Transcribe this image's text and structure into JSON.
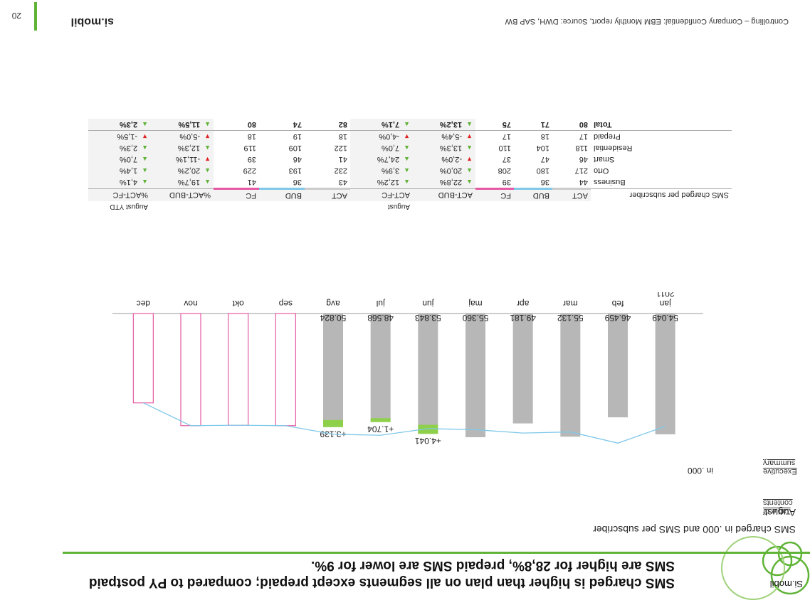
{
  "header": {
    "title": "SMS charged is higher than plan on all segments except prepaid; compared to PY postpaid SMS are higher for 28,8%, prepaid SMS are lower for 9%.",
    "brand": "Si.mobil",
    "subtitle": "SMS charged in .000 and SMS per subscriber",
    "month": "August"
  },
  "side_links": {
    "toc": "Table of contents",
    "exec": "Executive summary"
  },
  "chart_data": {
    "type": "bar",
    "unit_label": "in .000",
    "year_label": "2011",
    "categories": [
      "jan",
      "feb",
      "mar",
      "apr",
      "maj",
      "jun",
      "jul",
      "avg",
      "sep",
      "okt",
      "nov",
      "dec"
    ],
    "actual": [
      54049,
      46459,
      55132,
      49181,
      55360,
      53843,
      48568,
      50824,
      null,
      null,
      null,
      null
    ],
    "labels": [
      "54.049",
      "46.459",
      "55.132",
      "49.181",
      "55.360",
      "53.843",
      "48.568",
      "50.824",
      "",
      "",
      "",
      ""
    ],
    "variance_labels": [
      "",
      "",
      "",
      "",
      "",
      "+4.041",
      "+1.704",
      "+3.139",
      "",
      "",
      "",
      ""
    ],
    "variance": [
      0,
      0,
      0,
      0,
      0,
      4041,
      1704,
      3139,
      0,
      0,
      0,
      0
    ],
    "forecast_line": [
      50500,
      58000,
      53000,
      53500,
      52000,
      51500,
      54500,
      54000,
      50200,
      50000,
      50200,
      40000
    ],
    "colors": {
      "actual": "#b7b7b7",
      "variance": "#8ed04a",
      "forecast": "#e55aa3",
      "line": "#7fc8e8"
    }
  },
  "table": {
    "title": "SMS charged per subscriber",
    "group_month": "August",
    "group_ytd": "August YTD",
    "cols": [
      "ACT",
      "BUD",
      "FC",
      "ACT-BUD",
      "ACT-FC"
    ],
    "cols_ytd": [
      "ACT",
      "BUD",
      "FC",
      "%ACT-BUD",
      "%ACT-FC"
    ],
    "rows": [
      {
        "name": "Business",
        "v": [
          "44",
          "36",
          "39",
          "22,8%",
          "12,2%"
        ],
        "y": [
          "43",
          "36",
          "41",
          "19,7%",
          "4,1%"
        ],
        "a": [
          "up",
          "up"
        ],
        "ya": [
          "up",
          "up"
        ]
      },
      {
        "name": "Orto",
        "v": [
          "217",
          "180",
          "208",
          "20,0%",
          "3,9%"
        ],
        "y": [
          "232",
          "193",
          "229",
          "20,2%",
          "1,4%"
        ],
        "a": [
          "up",
          "up"
        ],
        "ya": [
          "up",
          "up"
        ]
      },
      {
        "name": "Smart",
        "v": [
          "46",
          "47",
          "37",
          "-2,0%",
          "24,7%"
        ],
        "y": [
          "41",
          "46",
          "39",
          "-11,1%",
          "7,0%"
        ],
        "a": [
          "down",
          "up"
        ],
        "ya": [
          "down",
          "up"
        ]
      },
      {
        "name": "Residential",
        "v": [
          "118",
          "104",
          "110",
          "13,3%",
          "7,0%"
        ],
        "y": [
          "122",
          "109",
          "119",
          "12,3%",
          "2,3%"
        ],
        "a": [
          "up",
          "up"
        ],
        "ya": [
          "up",
          "up"
        ]
      },
      {
        "name": "Prepaid",
        "v": [
          "17",
          "18",
          "17",
          "-5,4%",
          "-4,0%"
        ],
        "y": [
          "18",
          "19",
          "18",
          "-5,0%",
          "-1,5%"
        ],
        "a": [
          "down",
          "down"
        ],
        "ya": [
          "down",
          "down"
        ]
      },
      {
        "name": "Total",
        "v": [
          "80",
          "71",
          "75",
          "13,2%",
          "7,1%"
        ],
        "y": [
          "82",
          "74",
          "80",
          "11,5%",
          "2,3%"
        ],
        "a": [
          "up",
          "up"
        ],
        "ya": [
          "up",
          "up"
        ]
      }
    ]
  },
  "footer": {
    "text": "Controlling – Company Confidential: EBM Monthly report, Source: DWH, SAP BW",
    "page": "20",
    "logo": "si.mobil"
  }
}
